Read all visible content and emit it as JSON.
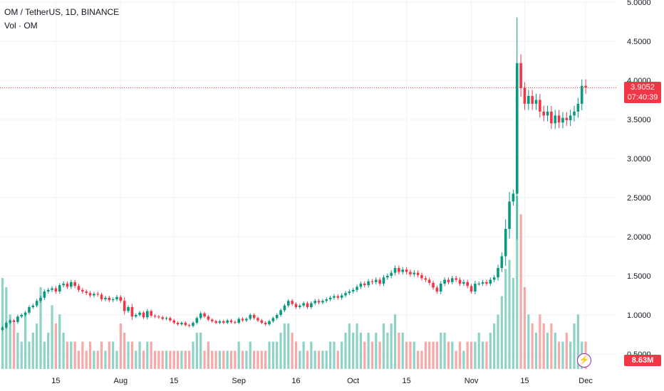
{
  "header": {
    "title": "OM / TetherUS, 1D, BINANCE",
    "volume_label": "Vol · OM"
  },
  "price_tag": {
    "price": "3.9052",
    "countdown": "07:40:39"
  },
  "volume_tag": "8.63M",
  "flash_icon_glyph": "⚡",
  "colors": {
    "up": "#089981",
    "down": "#f23645",
    "up_vol": "#8fd3c6",
    "down_vol": "#f7a9a7"
  },
  "chart_data": {
    "type": "candlestick",
    "y_axis": {
      "min": 0.3,
      "max": 5.0,
      "ticks": [
        0.5,
        1.0,
        1.5,
        2.0,
        2.5,
        3.0,
        3.5,
        4.0,
        4.5,
        5.0
      ],
      "tick_labels": [
        "0.5000",
        "1.0000",
        "1.5000",
        "2.0000",
        "2.5000",
        "3.0000",
        "3.5000",
        "4.0000",
        "4.5000",
        "5.0000"
      ]
    },
    "x_axis": {
      "labels": [
        {
          "label": "15",
          "index": 14
        },
        {
          "label": "Aug",
          "index": 31
        },
        {
          "label": "15",
          "index": 45
        },
        {
          "label": "Sep",
          "index": 62
        },
        {
          "label": "16",
          "index": 77
        },
        {
          "label": "Oct",
          "index": 92
        },
        {
          "label": "15",
          "index": 106
        },
        {
          "label": "Nov",
          "index": 123
        },
        {
          "label": "15",
          "index": 137
        },
        {
          "label": "Dec",
          "index": 153
        }
      ]
    },
    "last_price": 3.9052,
    "close": [
      0.84,
      0.9,
      0.93,
      0.91,
      0.98,
      1.0,
      1.03,
      1.1,
      1.12,
      1.18,
      1.22,
      1.3,
      1.32,
      1.34,
      1.3,
      1.38,
      1.4,
      1.36,
      1.42,
      1.37,
      1.32,
      1.3,
      1.28,
      1.25,
      1.27,
      1.26,
      1.2,
      1.22,
      1.19,
      1.2,
      1.23,
      1.18,
      1.05,
      1.1,
      0.98,
      1.0,
      1.03,
      0.97,
      1.05,
      0.99,
      0.98,
      0.97,
      0.95,
      0.96,
      0.93,
      0.9,
      0.88,
      0.9,
      0.87,
      0.86,
      0.9,
      0.96,
      1.02,
      0.98,
      0.94,
      0.92,
      0.9,
      0.92,
      0.9,
      0.93,
      0.91,
      0.9,
      0.95,
      0.93,
      0.95,
      1.0,
      0.96,
      0.93,
      0.9,
      0.88,
      0.92,
      0.96,
      1.0,
      1.06,
      1.12,
      1.18,
      1.14,
      1.1,
      1.12,
      1.15,
      1.1,
      1.15,
      1.18,
      1.16,
      1.18,
      1.2,
      1.22,
      1.24,
      1.22,
      1.25,
      1.28,
      1.3,
      1.32,
      1.36,
      1.4,
      1.38,
      1.43,
      1.42,
      1.45,
      1.4,
      1.48,
      1.5,
      1.54,
      1.6,
      1.55,
      1.58,
      1.55,
      1.52,
      1.54,
      1.51,
      1.47,
      1.45,
      1.41,
      1.35,
      1.3,
      1.4,
      1.45,
      1.42,
      1.47,
      1.45,
      1.4,
      1.42,
      1.37,
      1.3,
      1.4,
      1.4,
      1.42,
      1.4,
      1.45,
      1.48,
      1.6,
      1.75,
      2.1,
      2.45,
      2.55,
      4.22,
      3.9,
      3.7,
      3.8,
      3.7,
      3.75,
      3.6,
      3.55,
      3.6,
      3.45,
      3.55,
      3.46,
      3.52,
      3.49,
      3.55,
      3.6,
      3.7,
      3.93,
      3.91
    ],
    "volume": [
      1.0,
      0.9,
      0.6,
      0.5,
      0.4,
      0.3,
      0.6,
      0.3,
      0.4,
      0.5,
      0.9,
      0.3,
      0.4,
      0.7,
      0.5,
      0.6,
      0.4,
      0.3,
      0.3,
      0.3,
      0.2,
      0.3,
      0.2,
      0.3,
      0.2,
      0.2,
      0.3,
      0.2,
      0.3,
      0.3,
      0.2,
      0.5,
      0.4,
      0.3,
      0.3,
      0.2,
      0.3,
      0.2,
      0.3,
      0.3,
      0.2,
      0.2,
      0.2,
      0.2,
      0.2,
      0.2,
      0.2,
      0.2,
      0.2,
      0.2,
      0.3,
      0.4,
      0.4,
      0.2,
      0.3,
      0.2,
      0.2,
      0.2,
      0.2,
      0.2,
      0.2,
      0.2,
      0.3,
      0.2,
      0.2,
      0.3,
      0.2,
      0.2,
      0.2,
      0.2,
      0.3,
      0.3,
      0.3,
      0.4,
      0.5,
      0.5,
      0.4,
      0.3,
      0.2,
      0.3,
      0.2,
      0.3,
      0.2,
      0.2,
      0.2,
      0.2,
      0.3,
      0.3,
      0.2,
      0.3,
      0.4,
      0.5,
      0.4,
      0.5,
      0.4,
      0.3,
      0.4,
      0.3,
      0.4,
      0.3,
      0.5,
      0.4,
      0.5,
      0.6,
      0.4,
      0.4,
      0.3,
      0.3,
      0.3,
      0.2,
      0.2,
      0.3,
      0.3,
      0.3,
      0.3,
      0.4,
      0.4,
      0.3,
      0.3,
      0.2,
      0.3,
      0.2,
      0.3,
      0.3,
      0.3,
      0.4,
      0.3,
      0.3,
      0.4,
      0.5,
      0.6,
      0.8,
      1.1,
      1.2,
      1.0,
      1.9,
      1.7,
      0.9,
      0.6,
      0.5,
      0.4,
      0.6,
      0.5,
      0.4,
      0.5,
      0.4,
      0.3,
      0.3,
      0.4,
      0.3,
      0.5,
      0.6,
      0.3,
      0.3
    ]
  }
}
